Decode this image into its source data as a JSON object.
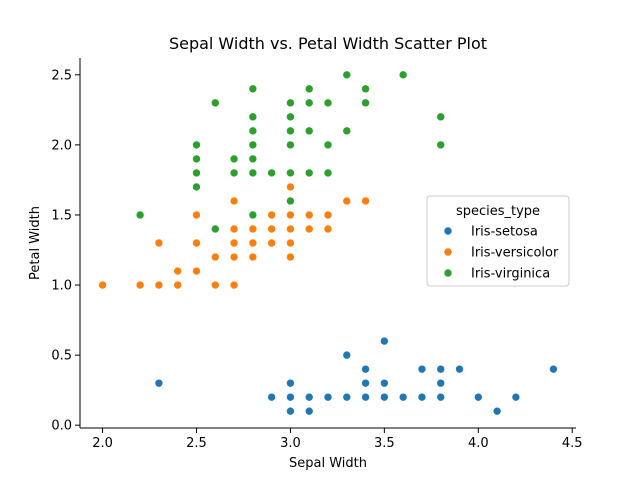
{
  "chart_data": {
    "type": "scatter",
    "title": "Sepal Width vs. Petal Width Scatter Plot",
    "xlabel": "Sepal Width",
    "ylabel": "Petal Width",
    "xlim": [
      1.88,
      4.52
    ],
    "ylim": [
      -0.02,
      2.62
    ],
    "xticks": [
      "2.0",
      "2.5",
      "3.0",
      "3.5",
      "4.0",
      "4.5"
    ],
    "yticks": [
      "0.0",
      "0.5",
      "1.0",
      "1.5",
      "2.0",
      "2.5"
    ],
    "grid": false,
    "legend": {
      "title": "species_type",
      "placement": "center-right"
    },
    "series": [
      {
        "name": "Iris-setosa",
        "color": "#1f77b4",
        "points": [
          [
            2.3,
            0.3
          ],
          [
            2.9,
            0.2
          ],
          [
            3.0,
            0.1
          ],
          [
            3.0,
            0.2
          ],
          [
            3.0,
            0.3
          ],
          [
            3.1,
            0.1
          ],
          [
            3.1,
            0.2
          ],
          [
            3.2,
            0.2
          ],
          [
            3.3,
            0.2
          ],
          [
            3.3,
            0.5
          ],
          [
            3.4,
            0.2
          ],
          [
            3.4,
            0.3
          ],
          [
            3.4,
            0.4
          ],
          [
            3.5,
            0.2
          ],
          [
            3.5,
            0.3
          ],
          [
            3.5,
            0.6
          ],
          [
            3.6,
            0.2
          ],
          [
            3.7,
            0.2
          ],
          [
            3.7,
            0.4
          ],
          [
            3.8,
            0.2
          ],
          [
            3.8,
            0.3
          ],
          [
            3.8,
            0.4
          ],
          [
            3.9,
            0.4
          ],
          [
            4.0,
            0.2
          ],
          [
            4.1,
            0.1
          ],
          [
            4.2,
            0.2
          ],
          [
            4.4,
            0.4
          ]
        ]
      },
      {
        "name": "Iris-versicolor",
        "color": "#ff7f0e",
        "points": [
          [
            2.0,
            1.0
          ],
          [
            2.2,
            1.0
          ],
          [
            2.3,
            1.0
          ],
          [
            2.3,
            1.3
          ],
          [
            2.4,
            1.0
          ],
          [
            2.4,
            1.1
          ],
          [
            2.5,
            1.1
          ],
          [
            2.5,
            1.3
          ],
          [
            2.5,
            1.5
          ],
          [
            2.6,
            1.0
          ],
          [
            2.6,
            1.2
          ],
          [
            2.7,
            1.0
          ],
          [
            2.7,
            1.2
          ],
          [
            2.7,
            1.3
          ],
          [
            2.7,
            1.4
          ],
          [
            2.7,
            1.6
          ],
          [
            2.8,
            1.2
          ],
          [
            2.8,
            1.3
          ],
          [
            2.8,
            1.4
          ],
          [
            2.9,
            1.3
          ],
          [
            2.9,
            1.4
          ],
          [
            2.9,
            1.5
          ],
          [
            3.0,
            1.2
          ],
          [
            3.0,
            1.3
          ],
          [
            3.0,
            1.4
          ],
          [
            3.0,
            1.5
          ],
          [
            3.0,
            1.7
          ],
          [
            3.1,
            1.4
          ],
          [
            3.1,
            1.5
          ],
          [
            3.2,
            1.4
          ],
          [
            3.2,
            1.5
          ],
          [
            3.3,
            1.6
          ],
          [
            3.4,
            1.6
          ]
        ]
      },
      {
        "name": "Iris-virginica",
        "color": "#2ca02c",
        "points": [
          [
            2.2,
            1.5
          ],
          [
            2.5,
            1.7
          ],
          [
            2.5,
            1.8
          ],
          [
            2.5,
            1.9
          ],
          [
            2.5,
            2.0
          ],
          [
            2.6,
            1.4
          ],
          [
            2.6,
            2.3
          ],
          [
            2.7,
            1.8
          ],
          [
            2.7,
            1.9
          ],
          [
            2.8,
            1.5
          ],
          [
            2.8,
            1.8
          ],
          [
            2.8,
            1.9
          ],
          [
            2.8,
            2.0
          ],
          [
            2.8,
            2.1
          ],
          [
            2.8,
            2.2
          ],
          [
            2.8,
            2.4
          ],
          [
            2.9,
            1.8
          ],
          [
            3.0,
            1.6
          ],
          [
            3.0,
            1.8
          ],
          [
            3.0,
            2.0
          ],
          [
            3.0,
            2.1
          ],
          [
            3.0,
            2.2
          ],
          [
            3.0,
            2.3
          ],
          [
            3.1,
            1.8
          ],
          [
            3.1,
            2.1
          ],
          [
            3.1,
            2.3
          ],
          [
            3.1,
            2.4
          ],
          [
            3.2,
            1.8
          ],
          [
            3.2,
            2.0
          ],
          [
            3.2,
            2.3
          ],
          [
            3.3,
            2.1
          ],
          [
            3.3,
            2.5
          ],
          [
            3.4,
            2.3
          ],
          [
            3.4,
            2.4
          ],
          [
            3.6,
            2.5
          ],
          [
            3.8,
            2.0
          ],
          [
            3.8,
            2.2
          ]
        ]
      }
    ]
  }
}
